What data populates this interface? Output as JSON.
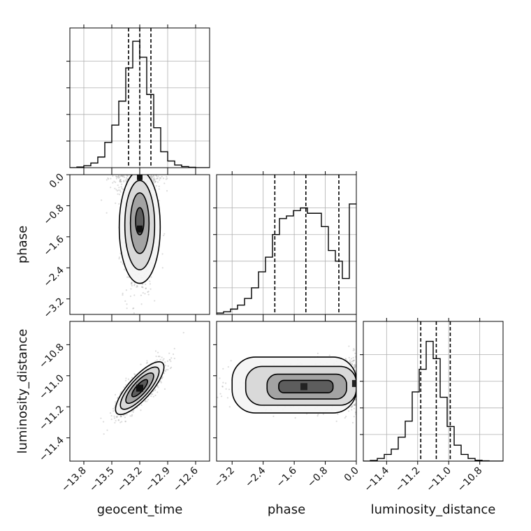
{
  "chart_data": {
    "type": "corner",
    "params": [
      {
        "name": "geocent_time",
        "xlim": [
          -13.95,
          -12.45
        ],
        "ticks": [
          -13.8,
          -13.5,
          -13.2,
          -12.9,
          -12.6
        ],
        "tick_labels": [
          "−13.8",
          "−13.5",
          "−13.2",
          "−12.9",
          "−12.6"
        ],
        "quantiles": [
          -13.32,
          -13.2,
          -13.08
        ]
      },
      {
        "name": "phase",
        "xlim": [
          -3.6,
          0.0
        ],
        "ticks": [
          -3.2,
          -2.4,
          -1.6,
          -0.8,
          0.0
        ],
        "tick_labels": [
          "−3.2",
          "−2.4",
          "−1.6",
          "−0.8",
          "0.0"
        ],
        "quantiles": [
          -2.1,
          -1.3,
          -0.45
        ]
      },
      {
        "name": "luminosity_distance",
        "xlim": [
          -11.55,
          -10.65
        ],
        "ticks": [
          -11.4,
          -11.2,
          -11.0,
          -10.8
        ],
        "tick_labels": [
          "−11.4",
          "−11.2",
          "−11.0",
          "−10.8"
        ],
        "quantiles": [
          -11.18,
          -11.08,
          -10.99
        ]
      }
    ],
    "panels": {
      "phase_vs_geocent_time": {
        "ylim": [
          -3.6,
          0.0
        ]
      },
      "luminosity_distance_vs_geocent_time": {
        "ylim": [
          -11.55,
          -10.65
        ]
      },
      "luminosity_distance_vs_phase": {
        "ylim": [
          -11.55,
          -10.65
        ]
      }
    },
    "histograms": {
      "geocent_time": {
        "edges_start": -13.95,
        "bin_width": 0.075,
        "counts": [
          0.0,
          0.005,
          0.015,
          0.035,
          0.08,
          0.19,
          0.32,
          0.5,
          0.75,
          0.95,
          0.83,
          0.55,
          0.3,
          0.12,
          0.05,
          0.02,
          0.008,
          0.003,
          0.0,
          0.0
        ]
      },
      "phase": {
        "edges_start": -3.6,
        "bin_width": 0.18,
        "counts": [
          0.01,
          0.02,
          0.04,
          0.07,
          0.12,
          0.2,
          0.32,
          0.43,
          0.6,
          0.72,
          0.74,
          0.78,
          0.8,
          0.76,
          0.76,
          0.66,
          0.48,
          0.4,
          0.27,
          0.83
        ]
      },
      "luminosity_distance": {
        "edges_start": -11.55,
        "bin_width": 0.045,
        "counts": [
          0.0,
          0.005,
          0.02,
          0.05,
          0.09,
          0.18,
          0.3,
          0.52,
          0.69,
          0.9,
          0.77,
          0.48,
          0.26,
          0.12,
          0.05,
          0.02,
          0.006,
          0.002,
          0.0,
          0.0
        ]
      }
    },
    "density_2d": {
      "phase_vs_geocent_time": {
        "blobs": [
          {
            "cx": -13.2,
            "cy": -1.4,
            "sx": 0.055,
            "sy": 0.55,
            "w": 0.9
          },
          {
            "cx": -13.2,
            "cy": -0.05,
            "sx": 0.08,
            "sy": 0.18,
            "w": 0.7
          }
        ],
        "contour_ellipses": [
          {
            "cx": -13.2,
            "cy": -1.35,
            "rx": 0.22,
            "ry": 1.45
          },
          {
            "cx": -13.2,
            "cy": -1.3,
            "rx": 0.16,
            "ry": 1.15
          },
          {
            "cx": -13.2,
            "cy": -1.25,
            "rx": 0.1,
            "ry": 0.78
          },
          {
            "cx": -13.2,
            "cy": -1.2,
            "rx": 0.045,
            "ry": 0.35
          }
        ]
      },
      "luminosity_distance_vs_geocent_time": {
        "center": [
          -13.2,
          -11.08
        ],
        "sx": 0.13,
        "sy": 0.085,
        "rho": 0.8,
        "contour_levels": [
          0.25,
          0.9,
          1.9,
          3.2
        ]
      },
      "luminosity_distance_vs_phase": {
        "blobs": [
          {
            "cx": -1.35,
            "cy": -11.07,
            "sx": 0.6,
            "sy": 0.045,
            "w": 0.85
          },
          {
            "cx": -0.02,
            "cy": -11.05,
            "sx": 0.12,
            "sy": 0.05,
            "w": 0.8
          }
        ],
        "contour_boxes": [
          {
            "x0": -3.2,
            "x1": 0.0,
            "y0": -11.24,
            "y1": -10.88
          },
          {
            "x0": -2.85,
            "x1": 0.0,
            "y0": -11.19,
            "y1": -10.94
          },
          {
            "x0": -2.3,
            "x1": -0.25,
            "y0": -11.15,
            "y1": -10.99
          },
          {
            "x0": -2.0,
            "x1": -0.6,
            "y0": -11.11,
            "y1": -11.03
          }
        ]
      }
    },
    "grid": true,
    "line_color": "#000000",
    "sample_color": "#9a9a9a"
  }
}
